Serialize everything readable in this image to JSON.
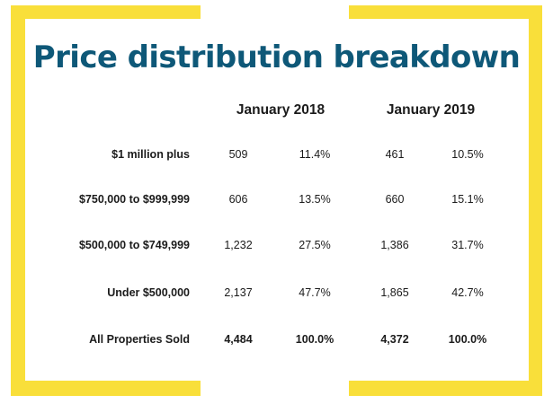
{
  "colors": {
    "frame": "#f9df3a",
    "title": "#0e5878",
    "text": "#1b1b1b"
  },
  "chart_data": {
    "type": "table",
    "title": "Price distribution breakdown",
    "periods": [
      "January 2018",
      "January 2019"
    ],
    "columns": [
      "January 2018 count",
      "January 2018 share",
      "January 2019 count",
      "January 2019 share"
    ],
    "rows": [
      {
        "label": "$1 million plus",
        "values": [
          "509",
          "11.4%",
          "461",
          "10.5%"
        ],
        "bold": false
      },
      {
        "label": "$750,000 to $999,999",
        "values": [
          "606",
          "13.5%",
          "660",
          "15.1%"
        ],
        "bold": false
      },
      {
        "label": "$500,000 to $749,999",
        "values": [
          "1,232",
          "27.5%",
          "1,386",
          "31.7%"
        ],
        "bold": false
      },
      {
        "label": "Under $500,000",
        "values": [
          "2,137",
          "47.7%",
          "1,865",
          "42.7%"
        ],
        "bold": false
      },
      {
        "label": "All Properties Sold",
        "values": [
          "4,484",
          "100.0%",
          "4,372",
          "100.0%"
        ],
        "bold": true
      }
    ]
  }
}
